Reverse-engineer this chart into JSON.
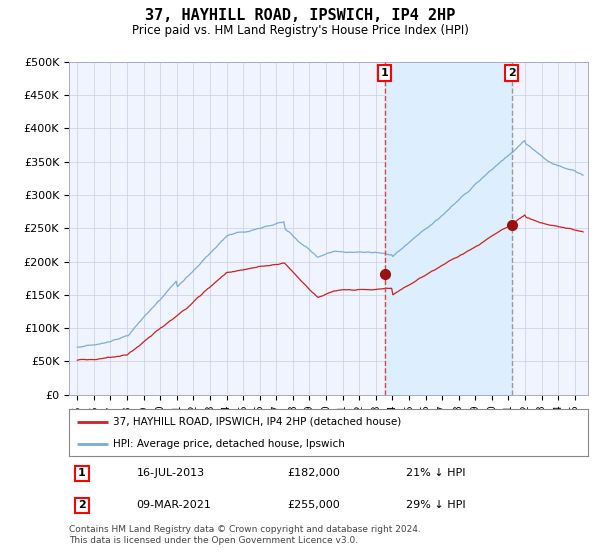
{
  "title": "37, HAYHILL ROAD, IPSWICH, IP4 2HP",
  "subtitle": "Price paid vs. HM Land Registry's House Price Index (HPI)",
  "legend_line1": "37, HAYHILL ROAD, IPSWICH, IP4 2HP (detached house)",
  "legend_line2": "HPI: Average price, detached house, Ipswich",
  "annotation1_date": "16-JUL-2013",
  "annotation1_price": "£182,000",
  "annotation1_pct": "21% ↓ HPI",
  "annotation1_year": 2013.54,
  "annotation1_value": 182000,
  "annotation2_date": "09-MAR-2021",
  "annotation2_price": "£255,000",
  "annotation2_pct": "29% ↓ HPI",
  "annotation2_year": 2021.19,
  "annotation2_value": 255000,
  "footer1": "Contains HM Land Registry data © Crown copyright and database right 2024.",
  "footer2": "This data is licensed under the Open Government Licence v3.0.",
  "hpi_color": "#7aaed6",
  "price_color": "#cc2222",
  "dot_color": "#991111",
  "vline1_color": "#dd4444",
  "vline2_color": "#999999",
  "shade_color": "#ddeeff",
  "background_color": "#f0f4ff",
  "grid_color": "#c8d0e8",
  "ylim": [
    0,
    500000
  ],
  "yticks": [
    0,
    50000,
    100000,
    150000,
    200000,
    250000,
    300000,
    350000,
    400000,
    450000,
    500000
  ],
  "ytick_labels": [
    "£0",
    "£50K",
    "£100K",
    "£150K",
    "£200K",
    "£250K",
    "£300K",
    "£350K",
    "£400K",
    "£450K",
    "£500K"
  ],
  "xtick_years": [
    1995,
    1996,
    1997,
    1998,
    1999,
    2000,
    2001,
    2002,
    2003,
    2004,
    2005,
    2006,
    2007,
    2008,
    2009,
    2010,
    2011,
    2012,
    2013,
    2014,
    2015,
    2016,
    2017,
    2018,
    2019,
    2020,
    2021,
    2022,
    2023,
    2024,
    2025
  ],
  "xlim": [
    1994.5,
    2025.8
  ]
}
